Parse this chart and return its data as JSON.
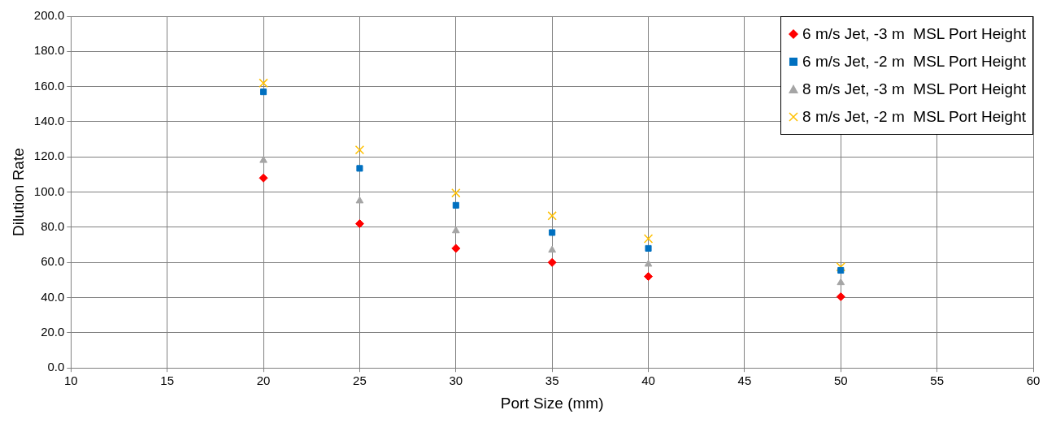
{
  "chart_data": {
    "type": "scatter",
    "xlabel": "Port Size (mm)",
    "ylabel": "Dilution Rate",
    "x": [
      20,
      25,
      30,
      35,
      40,
      50
    ],
    "series": [
      {
        "name": "6 m/s Jet, -3 m  MSL Port Height",
        "color": "#ff0000",
        "marker": "diamond",
        "values": [
          108,
          82,
          68,
          60,
          52,
          40.5
        ]
      },
      {
        "name": "6 m/s Jet, -2 m  MSL Port Height",
        "color": "#0070c0",
        "marker": "square",
        "values": [
          157,
          113.5,
          92.5,
          77,
          68,
          55.5
        ]
      },
      {
        "name": "8 m/s Jet, -3 m  MSL Port Height",
        "color": "#a5a5a5",
        "marker": "triangle",
        "values": [
          118,
          95,
          78,
          67,
          59,
          48.5
        ]
      },
      {
        "name": "8 m/s Jet, -2 m  MSL Port Height",
        "color": "#ffc000",
        "marker": "cross",
        "values": [
          162,
          124,
          99.5,
          86.5,
          73.5,
          57.5
        ]
      }
    ],
    "xlim": [
      10,
      60
    ],
    "xticks": [
      10,
      15,
      20,
      25,
      30,
      35,
      40,
      45,
      50,
      55,
      60
    ],
    "ylim": [
      0,
      200
    ],
    "yticks": [
      {
        "value": 0,
        "label": "0.0"
      },
      {
        "value": 20,
        "label": "20.0"
      },
      {
        "value": 40,
        "label": "40.0"
      },
      {
        "value": 60,
        "label": "60.0"
      },
      {
        "value": 80,
        "label": "80.0"
      },
      {
        "value": 100,
        "label": "100.0"
      },
      {
        "value": 120,
        "label": "120.0"
      },
      {
        "value": 140,
        "label": "140.0"
      },
      {
        "value": 160,
        "label": "160.0"
      },
      {
        "value": 180,
        "label": "180.0"
      },
      {
        "value": 200,
        "label": "200.0"
      }
    ],
    "grid": true,
    "legend": "top right"
  }
}
